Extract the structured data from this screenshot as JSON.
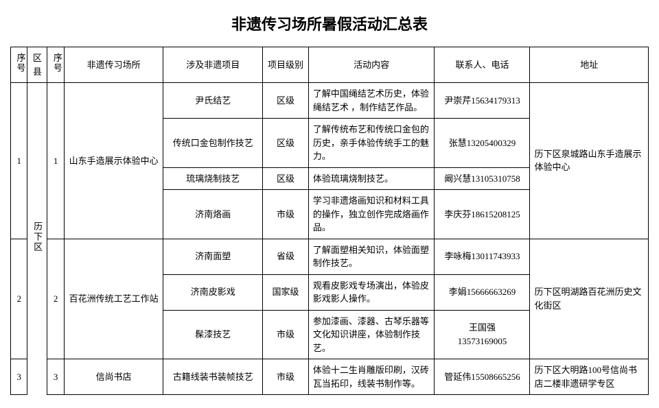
{
  "title": "非遗传习场所暑假活动汇总表",
  "headers": {
    "seq1": "序号",
    "district": "区县",
    "seq2": "序号",
    "venue": "非遗传习场所",
    "project": "涉及非遗项目",
    "level": "项目级别",
    "activity": "活动内容",
    "contact": "联系人、电话",
    "address": "地址"
  },
  "district": "历下区",
  "rows": [
    {
      "seq1": "1",
      "seq2": "1",
      "venue": "山东手造展示体验中心",
      "address": "历下区泉城路山东手造展示体验中心",
      "items": [
        {
          "project": "尹氏结艺",
          "level": "区级",
          "activity": "了解中国绳结艺术历史，体验绳结艺术 ，制作结艺作品。",
          "contact": "尹崇芹15634179313"
        },
        {
          "project": "传统口金包制作技艺",
          "level": "区级",
          "activity": "了解传统布艺和传统口金包的历史，亲手体验传统手工的魅力。",
          "contact": "张慧13205400329"
        },
        {
          "project": "琉璃烧制技艺",
          "level": "区级",
          "activity": "体验琉璃烧制技艺。",
          "contact": "阚兴慧13105310758"
        },
        {
          "project": "济南烙画",
          "level": "市级",
          "activity": "学习非遗烙画知识和材料工具的操作，独立创作完成烙画作品。",
          "contact": "李庆芬18615208125"
        }
      ]
    },
    {
      "seq1": "2",
      "seq2": "2",
      "venue": "百花洲传统工艺工作站",
      "address": "历下区明湖路百花洲历史文化街区",
      "items": [
        {
          "project": "济南面塑",
          "level": "省级",
          "activity": "了解面塑相关知识，体验面塑制作技艺。",
          "contact": "李咏梅13011743933"
        },
        {
          "project": "济南皮影戏",
          "level": "国家级",
          "activity": "观看皮影戏专场演出，体验皮影戏影人操作。",
          "contact": "李娟15666663269"
        },
        {
          "project": "髹漆技艺",
          "level": "市级",
          "activity": "参加漆画、漆器、古琴乐器等文化知识讲座，体验制作技艺。",
          "contact_name": "王国强",
          "contact_phone": "13573169005"
        }
      ]
    },
    {
      "seq1": "3",
      "seq2": "3",
      "venue": "信尚书店",
      "address": "历下区大明路100号信尚书店二楼非遗研学专区",
      "items": [
        {
          "project": "古籍线装书装帧技艺",
          "level": "市级",
          "activity": "体验十二生肖雕版印刷，汉砖瓦当拓印，线装书制作等。",
          "contact": "管延伟15508665256"
        }
      ]
    }
  ]
}
